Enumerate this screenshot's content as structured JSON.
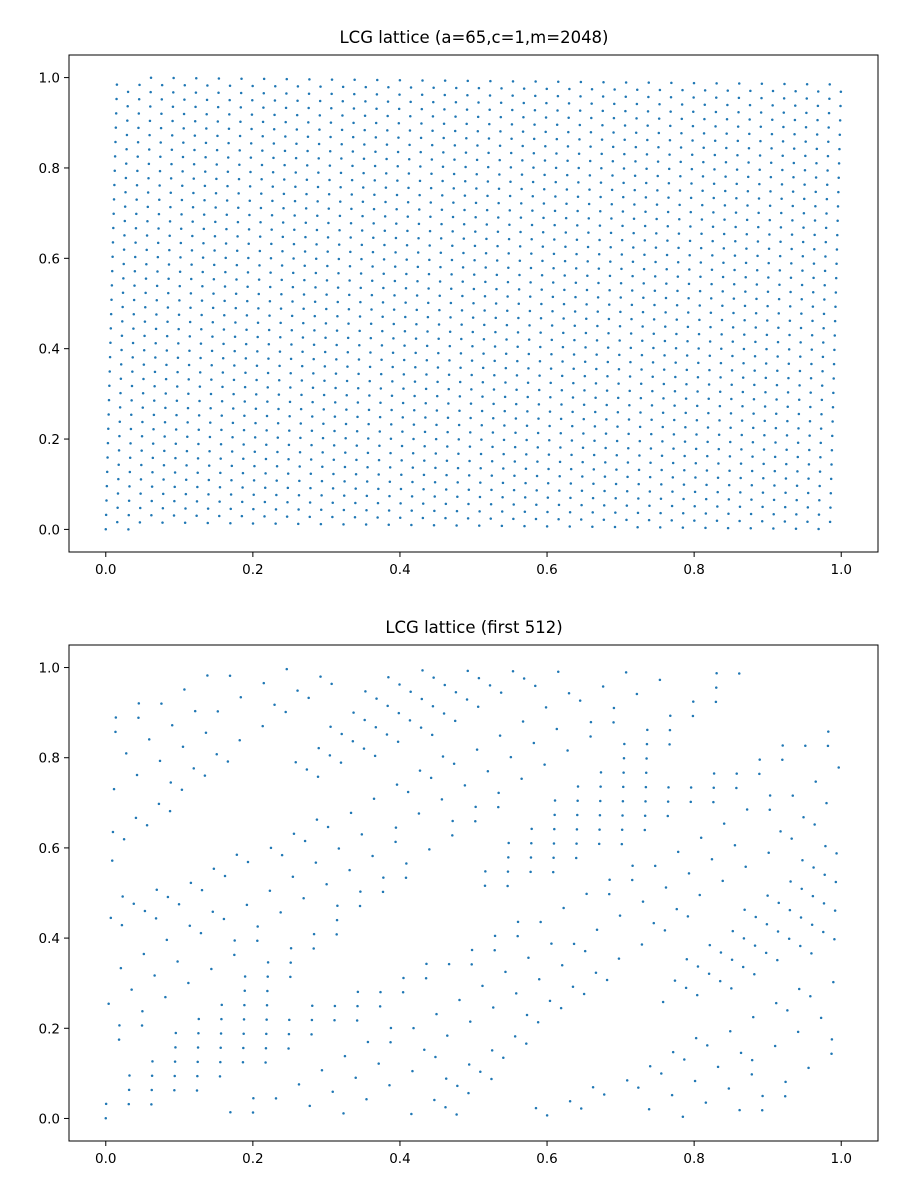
{
  "chart_data": [
    {
      "type": "scatter",
      "title": "LCG lattice (a=65,c=1,m=2048)",
      "xlabel": "",
      "ylabel": "",
      "xlim": [
        -0.05,
        1.05
      ],
      "ylim": [
        -0.05,
        1.05
      ],
      "xticks": [
        "0.0",
        "0.2",
        "0.4",
        "0.6",
        "0.8",
        "1.0"
      ],
      "yticks": [
        "0.0",
        "0.2",
        "0.4",
        "0.6",
        "0.8",
        "1.0"
      ],
      "grid": false,
      "legend": "none",
      "color": "#1f77b4",
      "generator": {
        "a": 65,
        "c": 1,
        "m": 2048,
        "seed": 0,
        "count": 2048
      },
      "points_description": "consecutive pairs (x_i/m, x_(i+1)/m) of the LCG sequence"
    },
    {
      "type": "scatter",
      "title": "LCG lattice (first 512)",
      "xlabel": "",
      "ylabel": "",
      "xlim": [
        -0.05,
        1.05
      ],
      "ylim": [
        -0.05,
        1.05
      ],
      "xticks": [
        "0.0",
        "0.2",
        "0.4",
        "0.6",
        "0.8",
        "1.0"
      ],
      "yticks": [
        "0.0",
        "0.2",
        "0.4",
        "0.6",
        "0.8",
        "1.0"
      ],
      "grid": false,
      "legend": "none",
      "color": "#1f77b4",
      "generator": {
        "a": 65,
        "c": 1,
        "m": 2048,
        "seed": 0,
        "count": 512
      },
      "points_description": "first 512 consecutive pairs (x_i/m, x_(i+1)/m) of the LCG sequence"
    }
  ]
}
